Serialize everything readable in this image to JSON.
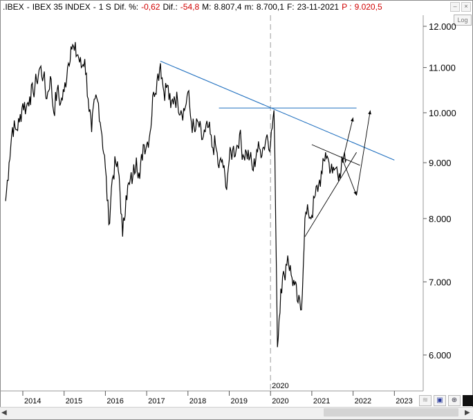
{
  "header": {
    "symbol": ".IBEX",
    "sep1": "-",
    "name": "IBEX 35 INDEX",
    "sep2": "-",
    "period": "1 S",
    "pct_label": "Dif. %:",
    "pct_value": "-0,62",
    "dif_label": "Dif.:",
    "dif_value": "-54,8",
    "max_label": "M:",
    "max_value": "8.807,4",
    "min_label": "m:",
    "min_value": "8.700,1",
    "date_label": "F:",
    "date_value": "23-11-2021",
    "price_label": "P :",
    "price_value": "9.020,5"
  },
  "buttons": {
    "log": "Log"
  },
  "icons": [
    "minimize-icon",
    "close-icon",
    "zoom-icon",
    "save-icon",
    "cursor-icon",
    "color-block-icon"
  ],
  "colors": {
    "price": "#000000",
    "trendline": "#1f6fbf",
    "negative": "#d00000"
  },
  "chart_data": {
    "type": "line",
    "title": "",
    "xlabel": "",
    "ylabel": "",
    "y_scale": "log",
    "ylim": [
      5600,
      12500
    ],
    "x_range": [
      "2013-08",
      "2023-07"
    ],
    "x_ticks": [
      "2014",
      "2015",
      "2016",
      "2017",
      "2018",
      "2019",
      "2020",
      "2021",
      "2022",
      "2023"
    ],
    "y_ticks": [
      "12.000",
      "11.000",
      "10.000",
      "9.000",
      "8.000",
      "7.000",
      "6.000"
    ],
    "y_tick_values": [
      12000,
      11000,
      10000,
      9000,
      8000,
      7000,
      6000
    ],
    "vertical_marker": {
      "label": "2020",
      "date": "2020-03"
    },
    "series": [
      {
        "values_by_date": [
          [
            "2013-08",
            8300
          ],
          [
            "2013-09",
            9000
          ],
          [
            "2013-10",
            9700
          ],
          [
            "2013-11",
            9650
          ],
          [
            "2013-12",
            9800
          ],
          [
            "2014-01",
            10200
          ],
          [
            "2014-02",
            10100
          ],
          [
            "2014-03",
            10350
          ],
          [
            "2014-04",
            10450
          ],
          [
            "2014-05",
            10700
          ],
          [
            "2014-06",
            11000
          ],
          [
            "2014-07",
            10800
          ],
          [
            "2014-08",
            10300
          ],
          [
            "2014-09",
            10800
          ],
          [
            "2014-10",
            10000
          ],
          [
            "2014-11",
            10500
          ],
          [
            "2014-12",
            10200
          ],
          [
            "2015-01",
            10450
          ],
          [
            "2015-02",
            11000
          ],
          [
            "2015-03",
            11500
          ],
          [
            "2015-04",
            11400
          ],
          [
            "2015-05",
            11300
          ],
          [
            "2015-06",
            11000
          ],
          [
            "2015-07",
            11200
          ],
          [
            "2015-08",
            10300
          ],
          [
            "2015-09",
            9600
          ],
          [
            "2015-10",
            10300
          ],
          [
            "2015-11",
            10200
          ],
          [
            "2015-12",
            9550
          ],
          [
            "2016-01",
            8900
          ],
          [
            "2016-02",
            7900
          ],
          [
            "2016-03",
            8700
          ],
          [
            "2016-04",
            9000
          ],
          [
            "2016-05",
            8750
          ],
          [
            "2016-06",
            7700
          ],
          [
            "2016-07",
            8400
          ],
          [
            "2016-08",
            8600
          ],
          [
            "2016-09",
            8750
          ],
          [
            "2016-10",
            9100
          ],
          [
            "2016-11",
            8700
          ],
          [
            "2016-12",
            9350
          ],
          [
            "2017-01",
            9350
          ],
          [
            "2017-02",
            9600
          ],
          [
            "2017-03",
            10450
          ],
          [
            "2017-04",
            10700
          ],
          [
            "2017-05",
            11100
          ],
          [
            "2017-06",
            10450
          ],
          [
            "2017-07",
            10600
          ],
          [
            "2017-08",
            10100
          ],
          [
            "2017-09",
            10350
          ],
          [
            "2017-10",
            10250
          ],
          [
            "2017-11",
            10050
          ],
          [
            "2017-12",
            10050
          ],
          [
            "2018-01",
            10450
          ],
          [
            "2018-02",
            9800
          ],
          [
            "2018-03",
            9600
          ],
          [
            "2018-04",
            9800
          ],
          [
            "2018-05",
            9450
          ],
          [
            "2018-06",
            9600
          ],
          [
            "2018-07",
            9700
          ],
          [
            "2018-08",
            9300
          ],
          [
            "2018-09",
            9350
          ],
          [
            "2018-10",
            8900
          ],
          [
            "2018-11",
            9050
          ],
          [
            "2018-12",
            8550
          ],
          [
            "2019-01",
            9050
          ],
          [
            "2019-02",
            9250
          ],
          [
            "2019-03",
            9250
          ],
          [
            "2019-04",
            9550
          ],
          [
            "2019-05",
            9150
          ],
          [
            "2019-06",
            9200
          ],
          [
            "2019-07",
            9100
          ],
          [
            "2019-08",
            8850
          ],
          [
            "2019-09",
            9250
          ],
          [
            "2019-10",
            9250
          ],
          [
            "2019-11",
            9300
          ],
          [
            "2019-12",
            9550
          ],
          [
            "2020-01",
            9350
          ],
          [
            "2020-02",
            10050
          ],
          [
            "2020-03",
            6100
          ],
          [
            "2020-04",
            6900
          ],
          [
            "2020-05",
            7100
          ],
          [
            "2020-06",
            7400
          ],
          [
            "2020-07",
            7100
          ],
          [
            "2020-08",
            6950
          ],
          [
            "2020-09",
            6700
          ],
          [
            "2020-10",
            6600
          ],
          [
            "2020-11",
            8000
          ],
          [
            "2020-12",
            8100
          ],
          [
            "2021-01",
            8050
          ],
          [
            "2021-02",
            8400
          ],
          [
            "2021-03",
            8600
          ],
          [
            "2021-04",
            8800
          ],
          [
            "2021-05",
            9200
          ],
          [
            "2021-06",
            9000
          ],
          [
            "2021-07",
            8800
          ],
          [
            "2021-08",
            8900
          ],
          [
            "2021-09",
            8800
          ],
          [
            "2021-10",
            9000
          ],
          [
            "2021-11",
            9050
          ]
        ]
      }
    ],
    "lines": [
      {
        "style": "long-term resistance",
        "from": [
          "2017-05",
          11150
        ],
        "to": [
          "2023-01",
          9050
        ]
      },
      {
        "style": "horizontal resistance",
        "from": [
          "2018-10",
          10100
        ],
        "to": [
          "2022-02",
          10100
        ]
      },
      {
        "style": "pattern upper",
        "from": [
          "2021-01",
          9350
        ],
        "to": [
          "2022-03",
          8950
        ]
      },
      {
        "style": "pattern lower",
        "from": [
          "2020-11",
          7700
        ],
        "to": [
          "2022-02",
          9200
        ]
      },
      {
        "style": "projection",
        "from": [
          "2021-10",
          9050
        ],
        "to": [
          "2022-01",
          9900
        ]
      },
      {
        "style": "projection",
        "from": [
          "2021-10",
          9050
        ],
        "to": [
          "2022-02",
          8400
        ]
      },
      {
        "style": "projection",
        "from": [
          "2022-02",
          8400
        ],
        "to": [
          "2022-06",
          10050
        ]
      }
    ]
  }
}
